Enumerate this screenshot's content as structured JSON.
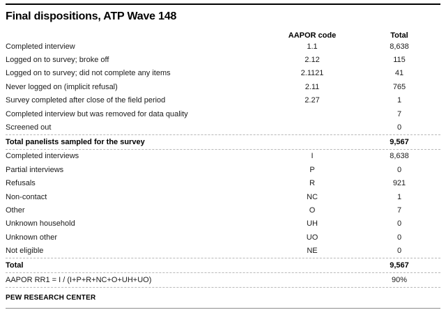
{
  "title": "Final dispositions, ATP Wave 148",
  "columns": {
    "aapor": "AAPOR code",
    "total": "Total"
  },
  "section1": {
    "rows": [
      {
        "label": "Completed interview",
        "code": "1.1",
        "total": "8,638"
      },
      {
        "label": "Logged on to survey; broke off",
        "code": "2.12",
        "total": "115"
      },
      {
        "label": "Logged on to survey; did not complete any items",
        "code": "2.1121",
        "total": "41"
      },
      {
        "label": "Never logged on (implicit refusal)",
        "code": "2.11",
        "total": "765"
      },
      {
        "label": "Survey completed after close of the field period",
        "code": "2.27",
        "total": "1"
      },
      {
        "label": "Completed interview but was removed for data quality",
        "code": "",
        "total": "7"
      },
      {
        "label": "Screened out",
        "code": "",
        "total": "0"
      }
    ],
    "total_row": {
      "label": "Total panelists sampled for the survey",
      "code": "",
      "total": "9,567"
    }
  },
  "section2": {
    "rows": [
      {
        "label": "Completed interviews",
        "code": "I",
        "total": "8,638"
      },
      {
        "label": "Partial interviews",
        "code": "P",
        "total": "0"
      },
      {
        "label": "Refusals",
        "code": "R",
        "total": "921"
      },
      {
        "label": "Non-contact",
        "code": "NC",
        "total": "1"
      },
      {
        "label": "Other",
        "code": "O",
        "total": "7"
      },
      {
        "label": "Unknown household",
        "code": "UH",
        "total": "0"
      },
      {
        "label": "Unknown other",
        "code": "UO",
        "total": "0"
      },
      {
        "label": "Not eligible",
        "code": "NE",
        "total": "0"
      }
    ],
    "total_row": {
      "label": "Total",
      "code": "",
      "total": "9,567"
    },
    "rate_row": {
      "label": "AAPOR RR1 = I / (I+P+R+NC+O+UH+UO)",
      "code": "",
      "total": "90%"
    }
  },
  "footer": "PEW RESEARCH CENTER",
  "colors": {
    "text": "#1a1a1a",
    "title": "#000000",
    "rule_top": "#000000",
    "rule_dashed": "#b8b8b8",
    "rule_bottom": "#8c8c8c"
  }
}
